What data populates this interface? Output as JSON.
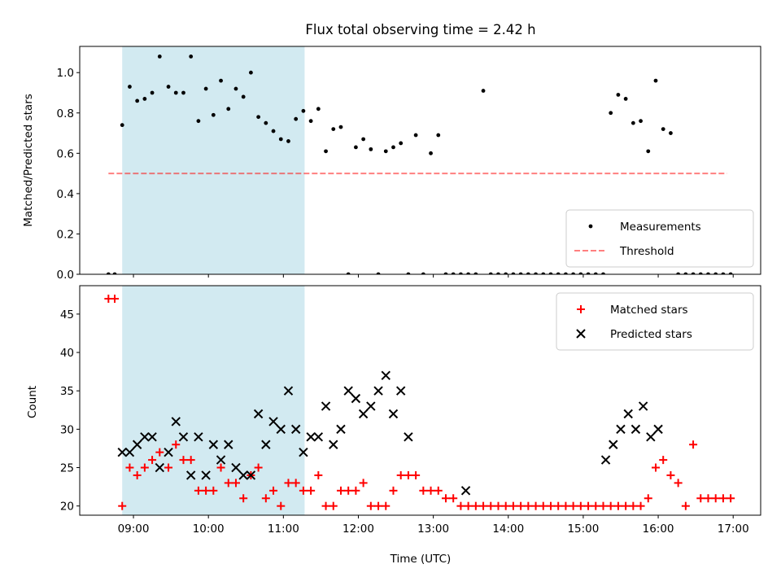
{
  "chart_data": [
    {
      "type": "scatter",
      "title": "Flux total observing time = 2.42 h",
      "ylabel": "Matched/Predicted stars",
      "xlabel": "",
      "xlim": [
        "08:17",
        "17:22"
      ],
      "ylim": [
        0,
        1.13
      ],
      "yticks": [
        "0.0",
        "0.2",
        "0.4",
        "0.6",
        "0.8",
        "1.0"
      ],
      "legend_position": "lower-right",
      "grid": false,
      "highlight_span": {
        "start": "08:51",
        "end": "11:17",
        "color": "#add8e6"
      },
      "threshold": {
        "name": "Threshold",
        "value": 0.5,
        "x_start": "08:40",
        "x_end": "16:55",
        "color": "#ff0000"
      },
      "series": [
        {
          "name": "Measurements",
          "color": "#000000",
          "x": [
            "08:40",
            "08:45",
            "08:51",
            "08:57",
            "09:03",
            "09:09",
            "09:15",
            "09:21",
            "09:28",
            "09:34",
            "09:40",
            "09:46",
            "09:52",
            "09:58",
            "10:04",
            "10:10",
            "10:16",
            "10:22",
            "10:28",
            "10:34",
            "10:40",
            "10:46",
            "10:52",
            "10:58",
            "11:04",
            "11:10",
            "11:16",
            "11:22",
            "11:28",
            "11:34",
            "11:40",
            "11:46",
            "11:52",
            "11:58",
            "12:04",
            "12:10",
            "12:16",
            "12:22",
            "12:28",
            "12:34",
            "12:40",
            "12:46",
            "12:52",
            "12:58",
            "13:04",
            "13:10",
            "13:16",
            "13:22",
            "13:28",
            "13:34",
            "13:40",
            "13:46",
            "13:52",
            "13:58",
            "14:04",
            "14:10",
            "14:16",
            "14:22",
            "14:28",
            "14:34",
            "14:40",
            "14:46",
            "14:52",
            "14:58",
            "15:04",
            "15:10",
            "15:16",
            "15:22",
            "15:28",
            "15:34",
            "15:40",
            "15:46",
            "15:52",
            "15:58",
            "16:04",
            "16:10",
            "16:16",
            "16:22",
            "16:28",
            "16:34",
            "16:40",
            "16:46",
            "16:52",
            "16:58"
          ],
          "y": [
            0,
            0,
            0.74,
            0.93,
            0.86,
            0.87,
            0.9,
            1.08,
            0.93,
            0.9,
            0.9,
            1.08,
            0.76,
            0.92,
            0.79,
            0.96,
            0.82,
            0.92,
            0.88,
            1.0,
            0.78,
            0.75,
            0.71,
            0.67,
            0.66,
            0.77,
            0.81,
            0.76,
            0.82,
            0.61,
            0.72,
            0.73,
            0,
            0.63,
            0.67,
            0.62,
            0,
            0.61,
            0.63,
            0.65,
            0,
            0.69,
            0,
            0.6,
            0.69,
            0,
            0,
            0,
            0,
            0,
            0.91,
            0,
            0,
            0,
            0,
            0,
            0,
            0,
            0,
            0,
            0,
            0,
            0,
            0,
            0,
            0,
            0,
            0.8,
            0.89,
            0.87,
            0.75,
            0.76,
            0.61,
            0.96,
            0.72,
            0.7,
            0,
            0,
            0,
            0,
            0,
            0,
            0,
            0
          ],
          "note_x": [
            "08:40",
            "08:45",
            "08:51",
            "08:57",
            "09:03",
            "09:09",
            "09:15",
            "09:21",
            "09:28",
            "09:34",
            "09:40",
            "09:46",
            "09:52",
            "09:58",
            "10:04",
            "10:10",
            "10:16",
            "10:22",
            "10:28",
            "10:34",
            "10:40",
            "10:46",
            "10:52",
            "10:58",
            "11:04",
            "11:10",
            "11:16",
            "11:22",
            "11:28",
            "11:34",
            "11:40",
            "11:46",
            "11:52",
            "12:00",
            "12:06",
            "12:14",
            "12:30",
            "12:37",
            "12:44",
            "12:50",
            "13:00",
            "13:07",
            "13:14",
            "13:20",
            "13:26",
            "13:34",
            "13:40",
            "13:48",
            "13:56",
            "14:04",
            "13:26"
          ]
        }
      ]
    },
    {
      "type": "scatter",
      "xlabel": "Time (UTC)",
      "ylabel": "Count",
      "xlim": [
        "08:17",
        "17:22"
      ],
      "ylim": [
        18.8,
        48.7
      ],
      "xticks": [
        "09:00",
        "10:00",
        "11:00",
        "12:00",
        "13:00",
        "14:00",
        "15:00",
        "16:00",
        "17:00"
      ],
      "yticks": [
        "20",
        "25",
        "30",
        "35",
        "40",
        "45"
      ],
      "legend_position": "upper-right",
      "grid": false,
      "highlight_span": {
        "start": "08:51",
        "end": "11:17",
        "color": "#add8e6"
      },
      "series": [
        {
          "name": "Matched stars",
          "marker": "plus",
          "color": "#ff0000",
          "x": [
            "08:40",
            "08:45",
            "08:51",
            "08:57",
            "09:03",
            "09:09",
            "09:15",
            "09:21",
            "09:28",
            "09:34",
            "09:40",
            "09:46",
            "09:52",
            "09:58",
            "10:04",
            "10:10",
            "10:16",
            "10:22",
            "10:28",
            "10:34",
            "10:40",
            "10:46",
            "10:52",
            "10:58",
            "11:04",
            "11:10",
            "11:16",
            "11:22",
            "11:28",
            "11:34",
            "11:40",
            "11:46",
            "11:52",
            "11:58",
            "12:04",
            "12:10",
            "12:16",
            "12:22",
            "12:28",
            "12:34",
            "12:40",
            "12:46",
            "12:52",
            "12:58",
            "13:04",
            "13:10",
            "13:16",
            "13:22",
            "13:28",
            "13:34",
            "13:40",
            "13:46",
            "13:52",
            "13:58",
            "14:04",
            "14:10",
            "14:16",
            "14:22",
            "14:28",
            "14:34",
            "14:40",
            "14:46",
            "14:52",
            "14:58",
            "15:04",
            "15:10",
            "15:16",
            "15:22",
            "15:28",
            "15:34",
            "15:40",
            "15:46",
            "15:52",
            "15:58",
            "16:04",
            "16:10",
            "16:16",
            "16:22",
            "16:28",
            "16:34",
            "16:40",
            "16:46",
            "16:52",
            "16:58"
          ],
          "y": [
            47,
            47,
            20,
            25,
            24,
            25,
            26,
            27,
            25,
            28,
            26,
            26,
            22,
            22,
            22,
            25,
            23,
            23,
            21,
            24,
            25,
            21,
            22,
            20,
            23,
            23,
            22,
            22,
            24,
            20,
            20,
            22,
            22,
            22,
            23,
            20,
            20,
            20,
            22,
            24,
            24,
            24,
            22,
            22,
            22,
            21,
            21,
            20,
            20,
            20,
            20,
            20,
            20,
            20,
            20,
            20,
            20,
            20,
            20,
            20,
            20,
            20,
            20,
            20,
            20,
            20,
            20,
            20,
            20,
            20,
            20,
            20,
            21,
            25,
            26,
            24,
            23,
            20,
            28,
            21,
            21,
            21,
            21,
            21
          ]
        },
        {
          "name": "Predicted stars",
          "marker": "x",
          "color": "#000000",
          "x": [
            "08:51",
            "08:57",
            "09:03",
            "09:09",
            "09:15",
            "09:21",
            "09:28",
            "09:34",
            "09:40",
            "09:46",
            "09:52",
            "09:58",
            "10:04",
            "10:10",
            "10:16",
            "10:22",
            "10:28",
            "10:34",
            "10:40",
            "10:46",
            "10:52",
            "10:58",
            "11:04",
            "11:10",
            "11:16",
            "11:22",
            "11:28",
            "11:34",
            "11:40",
            "11:46",
            "11:52",
            "11:58",
            "12:04",
            "12:10",
            "12:16",
            "12:22",
            "12:28",
            "12:34",
            "12:40",
            "13:26",
            "15:18",
            "15:24",
            "15:30",
            "15:36",
            "15:42",
            "15:48",
            "15:54",
            "16:00"
          ],
          "y": [
            27,
            27,
            28,
            29,
            29,
            25,
            27,
            31,
            29,
            24,
            29,
            24,
            28,
            26,
            28,
            25,
            24,
            24,
            32,
            28,
            31,
            30,
            35,
            30,
            27,
            29,
            29,
            33,
            28,
            30,
            35,
            34,
            32,
            33,
            35,
            37,
            32,
            35,
            29,
            22,
            26,
            28,
            30,
            32,
            30,
            33,
            29,
            30
          ]
        }
      ]
    }
  ]
}
